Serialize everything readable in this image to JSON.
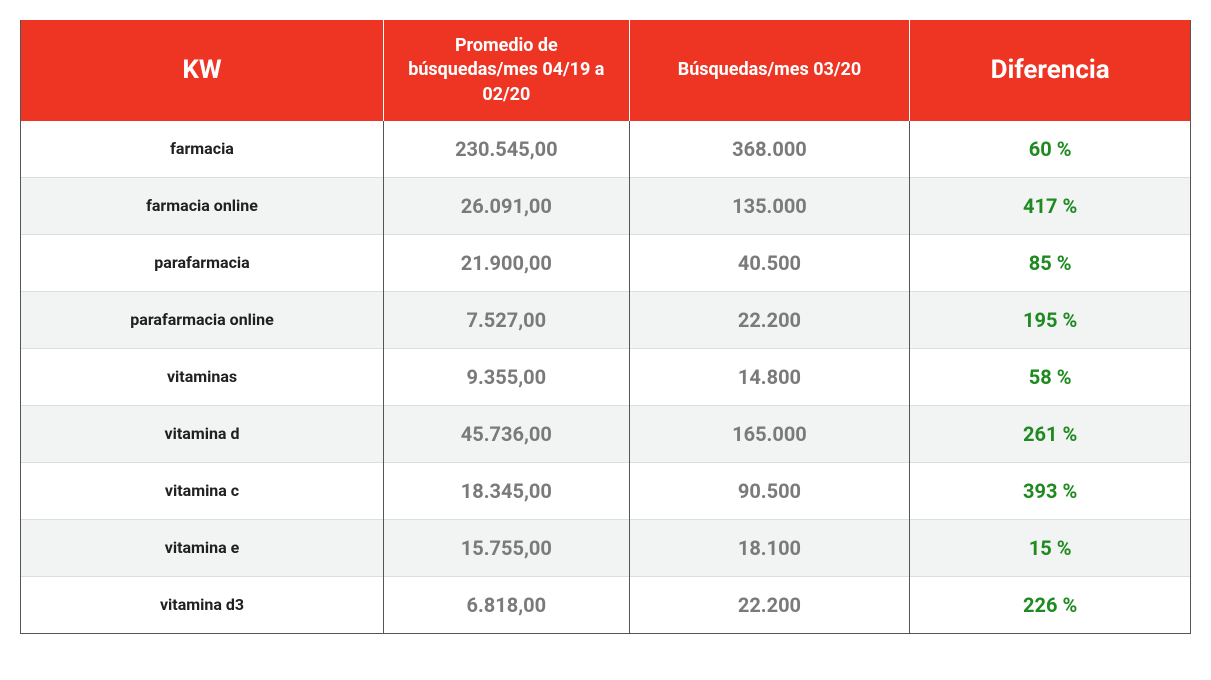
{
  "table": {
    "type": "table",
    "header_bg": "#ee3524",
    "header_fg": "#ffffff",
    "row_stripe_odd": "#ffffff",
    "row_stripe_even": "#f2f4f4",
    "border_color": "#555555",
    "kw_color": "#212121",
    "num_color": "#7a7a7a",
    "diff_color": "#1f8a1f",
    "big_header_fontsize": 26,
    "mid_header_fontsize": 18,
    "kw_fontsize": 16,
    "cell_fontsize": 20,
    "column_widths_pct": [
      31,
      21,
      24,
      24
    ],
    "columns": [
      {
        "label": "KW",
        "class": "big"
      },
      {
        "label": "Promedio de búsquedas/mes 04/19 a 02/20",
        "class": "mid"
      },
      {
        "label": "Búsquedas/mes 03/20",
        "class": "mid"
      },
      {
        "label": "Diferencia",
        "class": "big"
      }
    ],
    "rows": [
      {
        "kw": "farmacia",
        "avg": "230.545,00",
        "mar20": "368.000",
        "diff": "60 %"
      },
      {
        "kw": "farmacia online",
        "avg": "26.091,00",
        "mar20": "135.000",
        "diff": "417 %"
      },
      {
        "kw": "parafarmacia",
        "avg": "21.900,00",
        "mar20": "40.500",
        "diff": "85 %"
      },
      {
        "kw": "parafarmacia online",
        "avg": "7.527,00",
        "mar20": "22.200",
        "diff": "195 %"
      },
      {
        "kw": "vitaminas",
        "avg": "9.355,00",
        "mar20": "14.800",
        "diff": "58 %"
      },
      {
        "kw": "vitamina d",
        "avg": "45.736,00",
        "mar20": "165.000",
        "diff": "261 %"
      },
      {
        "kw": "vitamina c",
        "avg": "18.345,00",
        "mar20": "90.500",
        "diff": "393 %"
      },
      {
        "kw": "vitamina e",
        "avg": "15.755,00",
        "mar20": "18.100",
        "diff": "15 %"
      },
      {
        "kw": "vitamina d3",
        "avg": "6.818,00",
        "mar20": "22.200",
        "diff": "226 %"
      }
    ]
  }
}
